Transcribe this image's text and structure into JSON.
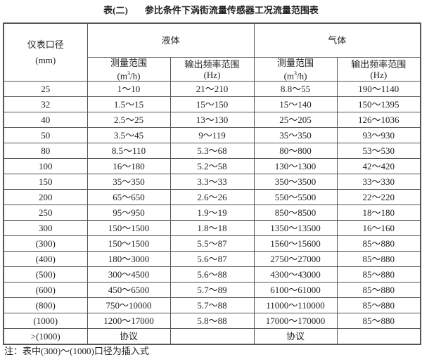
{
  "title": {
    "prefix": "表(二)",
    "text": "参比条件下涡街流量传感器工况流量范围表"
  },
  "header": {
    "diameter": "仪表口径",
    "diameter_unit": "(mm)",
    "liquid": "液体",
    "gas": "气体",
    "range": "测量范围",
    "range_unit_pre": "(m",
    "range_unit_sup": "3",
    "range_unit_post": "/h)",
    "freq": "输出频率范围",
    "freq_unit": "(Hz)"
  },
  "rows": [
    [
      "25",
      "1～10",
      "21～210",
      "8.8～55",
      "190～1140"
    ],
    [
      "32",
      "1.5～15",
      "15～150",
      "15～140",
      "150～1395"
    ],
    [
      "40",
      "2.5～25",
      "13～130",
      "25～205",
      "126～1036"
    ],
    [
      "50",
      "3.5～45",
      "9～119",
      "35～350",
      "93～930"
    ],
    [
      "80",
      "8.5～110",
      "5.3～68",
      "80～800",
      "53～530"
    ],
    [
      "100",
      "16～180",
      "5.2～58",
      "130～1300",
      "42～420"
    ],
    [
      "150",
      "35～350",
      "3.3～33",
      "350～3500",
      "33～330"
    ],
    [
      "200",
      "65～650",
      "2.6～26",
      "550～5500",
      "22～220"
    ],
    [
      "250",
      "95～950",
      "1.9～19",
      "850～8500",
      "18～180"
    ],
    [
      "300",
      "150～1500",
      "1.8～18",
      "1350～13500",
      "16～160"
    ],
    [
      "(300)",
      "150～1500",
      "5.5～87",
      "1560～15600",
      "85～880"
    ],
    [
      "(400)",
      "180～3000",
      "5.6～87",
      "2750～27000",
      "85～880"
    ],
    [
      "(500)",
      "300～4500",
      "5.6～88",
      "4300～43000",
      "85～880"
    ],
    [
      "(600)",
      "450～6500",
      "5.7～89",
      "6100～61000",
      "85～880"
    ],
    [
      "(800)",
      "750～10000",
      "5.7～88",
      "11000～110000",
      "85～880"
    ],
    [
      "(1000)",
      "1200～17000",
      "5.8～88",
      "17000～170000",
      "85～880"
    ],
    [
      ">(1000)",
      "协议",
      "",
      "协议",
      ""
    ]
  ],
  "note": "注：表中(300)～(1000)口径为插入式"
}
